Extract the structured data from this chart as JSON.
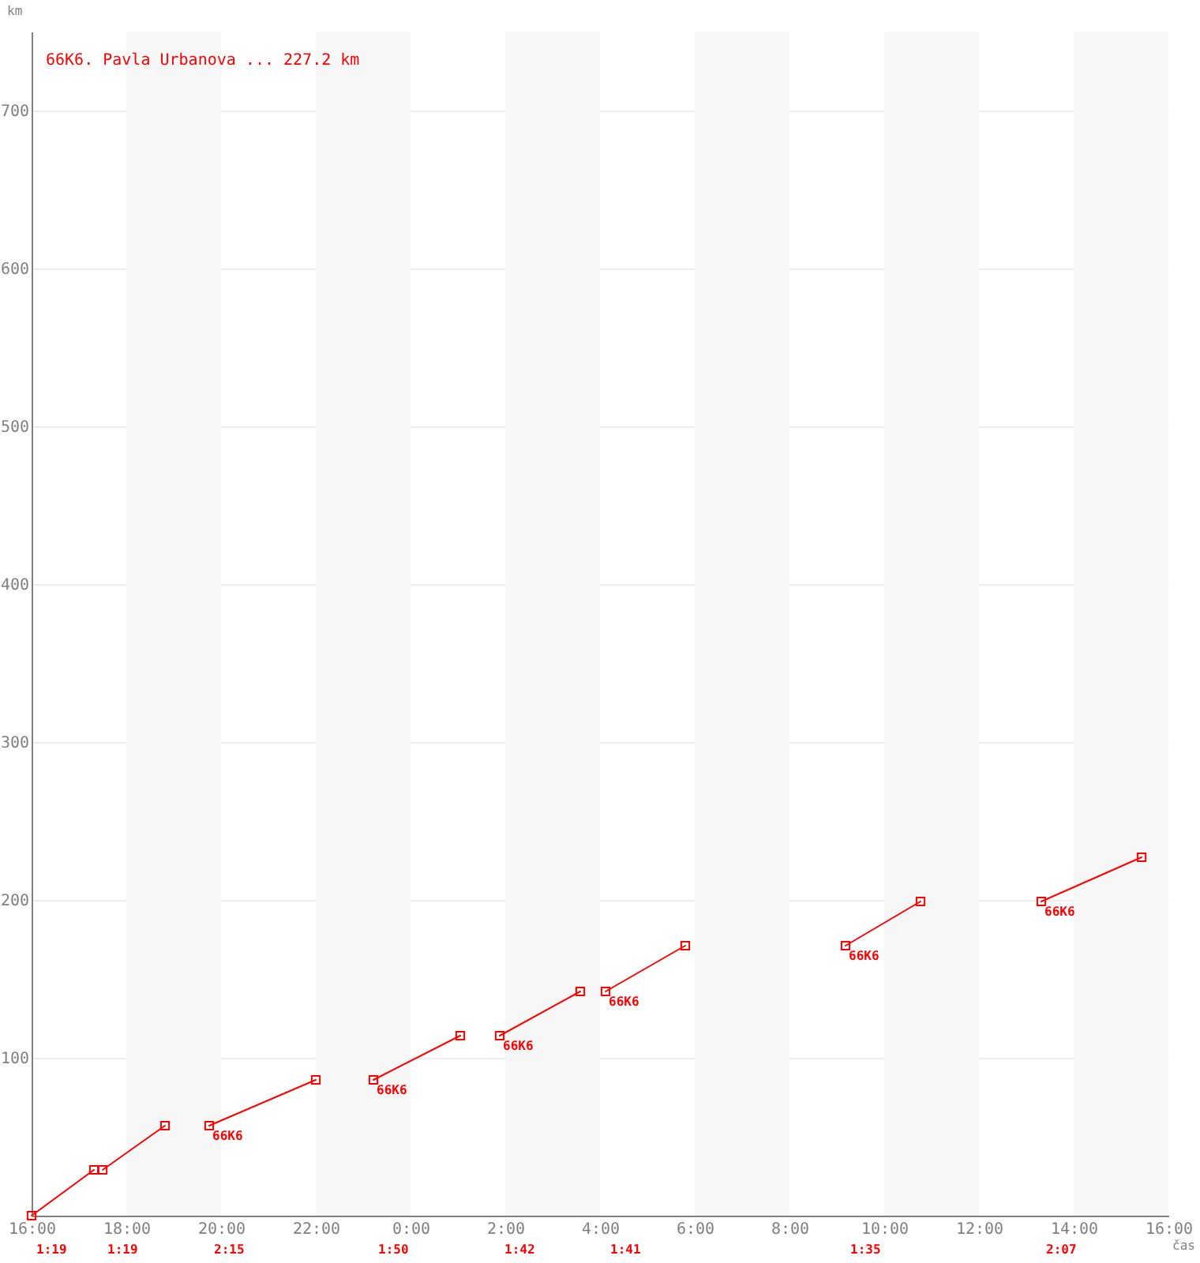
{
  "chart_data": {
    "type": "line",
    "title": "66K6. Pavla Urbanova ... 227.2 km",
    "xlabel": "čas",
    "ylabel": "km",
    "xlim": [
      "2000-01-01T16:00",
      "2000-01-02T16:00"
    ],
    "ylim": [
      0,
      750
    ],
    "xticks": [
      {
        "value": "2000-01-01T16:00",
        "label": "16:00"
      },
      {
        "value": "2000-01-01T18:00",
        "label": "18:00"
      },
      {
        "value": "2000-01-01T20:00",
        "label": "20:00"
      },
      {
        "value": "2000-01-01T22:00",
        "label": "22:00"
      },
      {
        "value": "2000-01-02T00:00",
        "label": "0:00"
      },
      {
        "value": "2000-01-02T02:00",
        "label": "2:00"
      },
      {
        "value": "2000-01-02T04:00",
        "label": "4:00"
      },
      {
        "value": "2000-01-02T06:00",
        "label": "6:00"
      },
      {
        "value": "2000-01-02T08:00",
        "label": "8:00"
      },
      {
        "value": "2000-01-02T10:00",
        "label": "10:00"
      },
      {
        "value": "2000-01-02T12:00",
        "label": "12:00"
      },
      {
        "value": "2000-01-02T14:00",
        "label": "14:00"
      },
      {
        "value": "2000-01-02T16:00",
        "label": "16:00"
      }
    ],
    "yticks": [
      100,
      200,
      300,
      400,
      500,
      600,
      700
    ],
    "grid": "y",
    "marker": "square",
    "line_style": "solid",
    "bands": [
      {
        "axis": "x",
        "from": "2000-01-01T18:00",
        "to": "2000-01-01T20:00",
        "color": "#f7f7f7"
      },
      {
        "axis": "x",
        "from": "2000-01-01T22:00",
        "to": "2000-01-02T00:00",
        "color": "#f7f7f7"
      },
      {
        "axis": "x",
        "from": "2000-01-02T02:00",
        "to": "2000-01-02T04:00",
        "color": "#f7f7f7"
      },
      {
        "axis": "x",
        "from": "2000-01-02T06:00",
        "to": "2000-01-02T08:00",
        "color": "#f7f7f7"
      },
      {
        "axis": "x",
        "from": "2000-01-02T10:00",
        "to": "2000-01-02T12:00",
        "color": "#f7f7f7"
      },
      {
        "axis": "x",
        "from": "2000-01-02T14:00",
        "to": "2000-01-02T16:00",
        "color": "#f7f7f7"
      }
    ],
    "series": [
      {
        "color": "#ff0000",
        "x": [
          "2000-01-01T16:00",
          "2000-01-01T17:19"
        ],
        "values": [
          0,
          29
        ]
      },
      {
        "color": "#ff0000",
        "x": [
          "2000-01-01T17:30",
          "2000-01-01T18:49"
        ],
        "values": [
          29,
          57
        ]
      },
      {
        "name": "66K6",
        "color": "#ff0000",
        "x": [
          "2000-01-01T19:45",
          "2000-01-01T22:00"
        ],
        "values": [
          57,
          86
        ]
      },
      {
        "name": "66K6",
        "color": "#ff0000",
        "x": [
          "2000-01-01T23:13",
          "2000-01-02T01:03"
        ],
        "values": [
          86,
          114
        ]
      },
      {
        "name": "66K6",
        "color": "#ff0000",
        "x": [
          "2000-01-02T01:53",
          "2000-01-02T03:35"
        ],
        "values": [
          114,
          142
        ]
      },
      {
        "name": "66K6",
        "color": "#ff0000",
        "x": [
          "2000-01-02T04:07",
          "2000-01-02T05:48"
        ],
        "values": [
          142,
          171
        ]
      },
      {
        "name": "66K6",
        "color": "#ff0000",
        "x": [
          "2000-01-02T09:11",
          "2000-01-02T10:46"
        ],
        "values": [
          171,
          199
        ]
      },
      {
        "name": "66K6",
        "color": "#ff0000",
        "x": [
          "2000-01-02T13:19",
          "2000-01-02T15:26"
        ],
        "values": [
          199,
          227
        ]
      }
    ],
    "annotations": [
      "1:19",
      "1:19",
      "2:15",
      "1:50",
      "1:42",
      "1:41",
      "1:35",
      "2:07"
    ]
  }
}
